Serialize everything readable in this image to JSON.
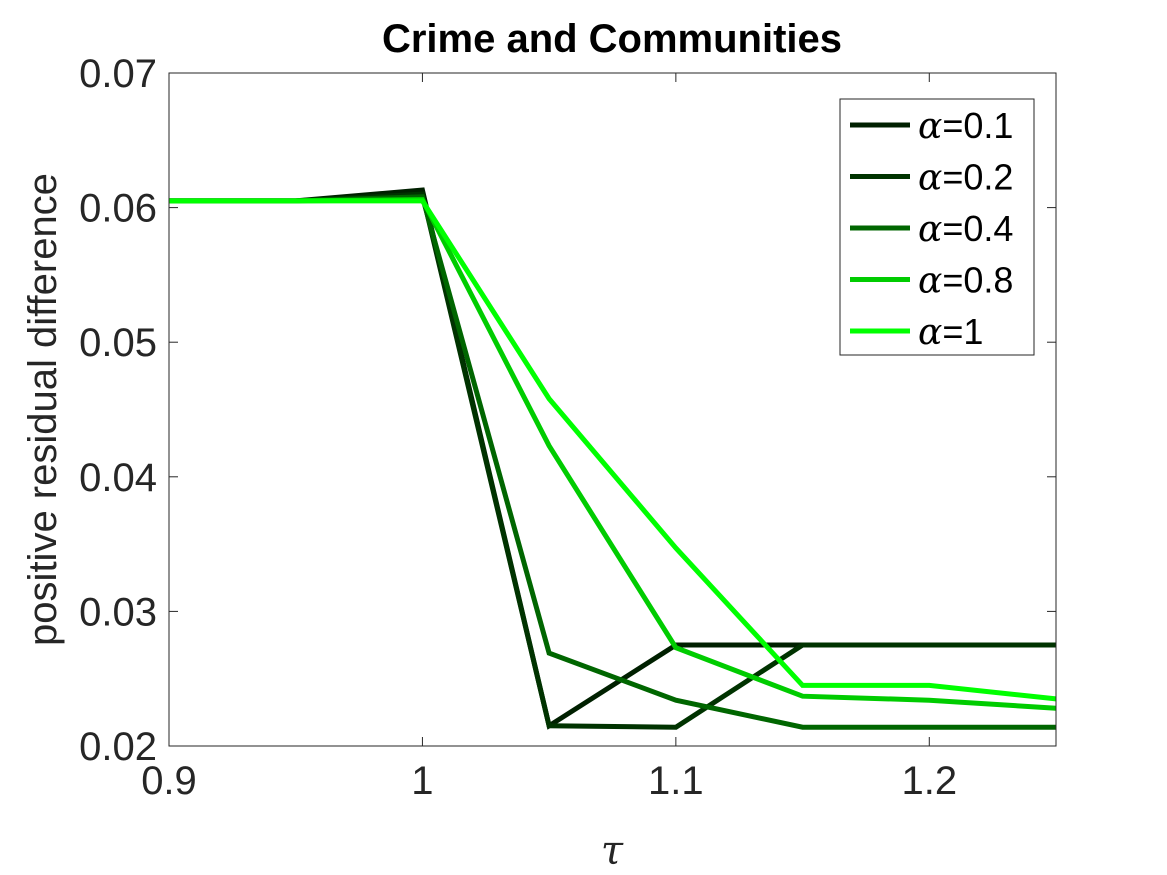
{
  "chart_data": {
    "type": "line",
    "title": "Crime and Communities",
    "xlabel": "τ",
    "ylabel": "positive residual difference",
    "xlim": [
      0.9,
      1.25
    ],
    "ylim": [
      0.02,
      0.07
    ],
    "x_ticks": [
      0.9,
      1.0,
      1.1,
      1.2
    ],
    "x_tick_labels": [
      "0.9",
      "1",
      "1.1",
      "1.2"
    ],
    "y_ticks": [
      0.02,
      0.03,
      0.04,
      0.05,
      0.06,
      0.07
    ],
    "y_tick_labels": [
      "0.02",
      "0.03",
      "0.04",
      "0.05",
      "0.06",
      "0.07"
    ],
    "grid": false,
    "legend_position": "top-right",
    "x": [
      0.9,
      0.95,
      1.0,
      1.05,
      1.1,
      1.15,
      1.2,
      1.25
    ],
    "series": [
      {
        "name": "α=0.1",
        "legend_symbol": "α",
        "legend_value": "=0.1",
        "color": "#002000",
        "values": [
          0.0605,
          0.0605,
          0.0613,
          0.0215,
          0.0275,
          0.0275,
          0.0275,
          0.0275
        ]
      },
      {
        "name": "α=0.2",
        "legend_symbol": "α",
        "legend_value": "=0.2",
        "color": "#003300",
        "values": [
          0.0605,
          0.0605,
          0.061,
          0.0215,
          0.0214,
          0.0275,
          0.0275,
          0.0275
        ]
      },
      {
        "name": "α=0.4",
        "legend_symbol": "α",
        "legend_value": "=0.4",
        "color": "#006600",
        "values": [
          0.0605,
          0.0605,
          0.0608,
          0.0269,
          0.0234,
          0.0214,
          0.0214,
          0.0214
        ]
      },
      {
        "name": "α=0.8",
        "legend_symbol": "α",
        "legend_value": "=0.8",
        "color": "#00CC00",
        "values": [
          0.0605,
          0.0605,
          0.0606,
          0.0423,
          0.0273,
          0.0237,
          0.0234,
          0.0228
        ]
      },
      {
        "name": "α=1",
        "legend_symbol": "α",
        "legend_value": "=1",
        "color": "#00FF00",
        "values": [
          0.0605,
          0.0605,
          0.0605,
          0.0458,
          0.0347,
          0.0245,
          0.0245,
          0.0235
        ]
      }
    ]
  }
}
